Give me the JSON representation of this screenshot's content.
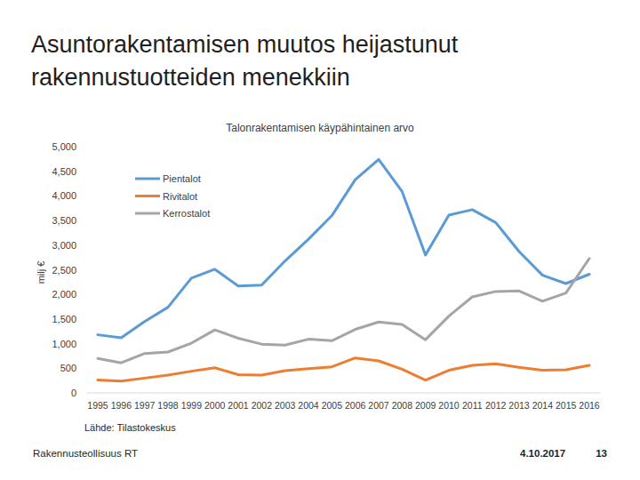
{
  "slide": {
    "title": [
      "Asuntorakentamisen muutos heijastunut",
      "rakennustuotteiden menekkiin"
    ],
    "source": "Lähde: Tilastokeskus",
    "organization": "Rakennusteollisuus RT",
    "date": "4.10.2017",
    "page": "13"
  },
  "chart_data": {
    "type": "line",
    "title": "Talonrakentamisen käypähintainen arvo",
    "y_label": "milj €",
    "categories": [
      "1995",
      "1996",
      "1997",
      "1998",
      "1999",
      "2000",
      "2001",
      "2002",
      "2003",
      "2004",
      "2005",
      "2006",
      "2007",
      "2008",
      "2009",
      "2010",
      "2011",
      "2012",
      "2013",
      "2014",
      "2015",
      "2016"
    ],
    "series": [
      {
        "name": "Pientalot",
        "color": "#5b9bd5",
        "values": [
          1180,
          1120,
          1450,
          1740,
          2330,
          2510,
          2170,
          2190,
          2680,
          3120,
          3600,
          4330,
          4740,
          4090,
          2800,
          3610,
          3720,
          3460,
          2870,
          2390,
          2220,
          2410
        ]
      },
      {
        "name": "Rivitalot",
        "color": "#ed7d31",
        "values": [
          260,
          240,
          300,
          360,
          440,
          510,
          370,
          360,
          450,
          490,
          530,
          710,
          650,
          480,
          260,
          460,
          560,
          590,
          520,
          460,
          470,
          560
        ]
      },
      {
        "name": "Kerrostalot",
        "color": "#a5a5a5",
        "values": [
          700,
          610,
          800,
          830,
          1010,
          1280,
          1110,
          990,
          970,
          1090,
          1060,
          1290,
          1440,
          1390,
          1080,
          1560,
          1950,
          2060,
          2070,
          1860,
          2030,
          2730
        ]
      }
    ],
    "ylim": [
      0,
      5000
    ],
    "yticks": [
      0,
      500,
      {
        "value": 1000,
        "label": "1,000"
      },
      {
        "value": 1500,
        "label": "1,500"
      },
      {
        "value": 2000,
        "label": "2,000"
      },
      {
        "value": 2500,
        "label": "2,500"
      },
      {
        "value": 3000,
        "label": "3,000"
      },
      {
        "value": 3500,
        "label": "3,500"
      },
      {
        "value": 4000,
        "label": "4,000"
      },
      {
        "value": 4500,
        "label": "4,500"
      },
      {
        "value": 5000,
        "label": "5,000"
      }
    ],
    "grid": false,
    "legend": "top-left"
  }
}
